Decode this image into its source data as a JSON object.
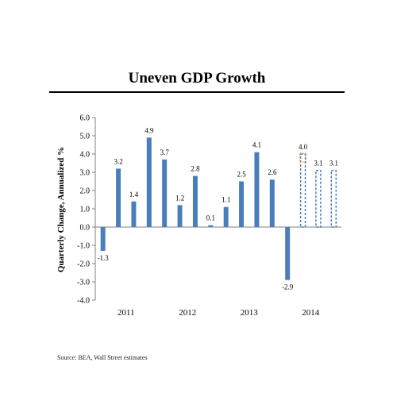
{
  "chart_data": {
    "type": "bar",
    "title": "Uneven GDP Growth",
    "ylabel": "Quarterly Change, Annualized %",
    "xlabel": "",
    "ylim": [
      -4.0,
      6.0
    ],
    "yticks": [
      "6.0",
      "5.0",
      "4.0",
      "3.0",
      "2.0",
      "1.0",
      "0.0",
      "-1.0",
      "-2.0",
      "-3.0",
      "-4.0"
    ],
    "year_labels": [
      "2011",
      "2012",
      "2013",
      "2014"
    ],
    "categories": [
      "2011 Q1",
      "2011 Q2",
      "2011 Q3",
      "2011 Q4",
      "2012 Q1",
      "2012 Q2",
      "2012 Q3",
      "2012 Q4",
      "2013 Q1",
      "2013 Q2",
      "2013 Q3",
      "2013 Q4",
      "2014 Q1",
      "2014 Q2",
      "2014 Q3",
      "2014 Q4"
    ],
    "series": [
      {
        "values": [
          -1.3,
          3.2,
          1.4,
          4.9,
          3.7,
          1.2,
          2.8,
          0.1,
          1.1,
          2.5,
          4.1,
          2.6,
          -2.9,
          4.0,
          3.1,
          3.1
        ],
        "labels": [
          "-1.3",
          "3.2",
          "1.4",
          "4.9",
          "3.7",
          "1.2",
          "2.8",
          "0.1",
          "1.1",
          "2.5",
          "4.1",
          "2.6",
          "-2.9",
          "4.0",
          "3.1",
          "3.1"
        ],
        "estimate": [
          false,
          false,
          false,
          false,
          false,
          false,
          false,
          false,
          false,
          false,
          false,
          false,
          false,
          true,
          true,
          true
        ]
      }
    ],
    "bar_color": "#4a7ebb",
    "estimate_color": "#4a7ebb",
    "estimate_highlight_color": "#f2a93b",
    "grid": false,
    "legend": "none"
  },
  "footer": {
    "source": "Source: BEA, Wall Street estimates"
  }
}
